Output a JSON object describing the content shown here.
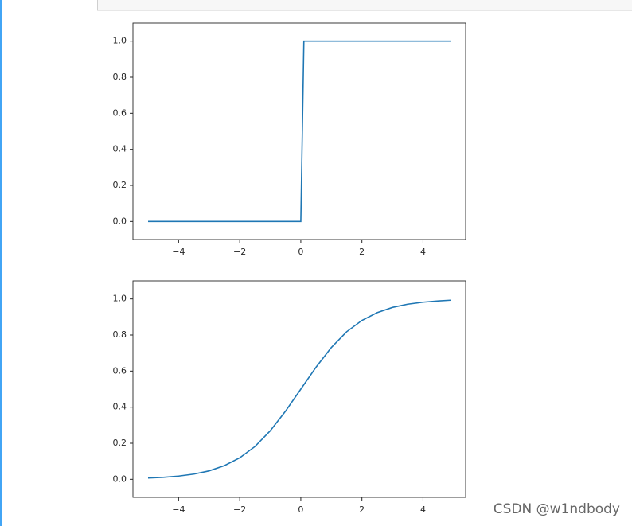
{
  "chart_data": [
    {
      "type": "line",
      "x": [
        -5,
        0,
        0.1,
        4.9
      ],
      "values": [
        0,
        0,
        1,
        1
      ],
      "color": "#1f77b4",
      "xlim": [
        -5.495,
        5.395
      ],
      "ylim": [
        -0.1,
        1.1
      ],
      "xticks": [
        {
          "value": -4,
          "label": "−4"
        },
        {
          "value": -2,
          "label": "−2"
        },
        0,
        2,
        4
      ],
      "yticks": [
        {
          "value": 0,
          "label": "0.0"
        },
        {
          "value": 0.2,
          "label": "0.2"
        },
        {
          "value": 0.4,
          "label": "0.4"
        },
        {
          "value": 0.6,
          "label": "0.6"
        },
        {
          "value": 0.8,
          "label": "0.8"
        },
        {
          "value": 1,
          "label": "1.0"
        }
      ],
      "grid": false
    },
    {
      "type": "line",
      "x": [
        -5,
        -4.5,
        -4,
        -3.5,
        -3,
        -2.5,
        -2,
        -1.5,
        -1,
        -0.5,
        0,
        0.5,
        1,
        1.5,
        2,
        2.5,
        3,
        3.5,
        4,
        4.5,
        4.9
      ],
      "values": [
        0.007,
        0.011,
        0.018,
        0.029,
        0.047,
        0.076,
        0.119,
        0.182,
        0.269,
        0.378,
        0.5,
        0.622,
        0.731,
        0.818,
        0.881,
        0.924,
        0.953,
        0.971,
        0.982,
        0.989,
        0.993
      ],
      "color": "#1f77b4",
      "xlim": [
        -5.495,
        5.395
      ],
      "ylim": [
        -0.1,
        1.1
      ],
      "xticks": [
        {
          "value": -4,
          "label": "−4"
        },
        {
          "value": -2,
          "label": "−2"
        },
        0,
        2,
        4
      ],
      "yticks": [
        {
          "value": 0,
          "label": "0.0"
        },
        {
          "value": 0.2,
          "label": "0.2"
        },
        {
          "value": 0.4,
          "label": "0.4"
        },
        {
          "value": 0.6,
          "label": "0.6"
        },
        {
          "value": 0.8,
          "label": "0.8"
        },
        {
          "value": 1,
          "label": "1.0"
        }
      ],
      "grid": false
    }
  ],
  "watermark": "CSDN @w1ndbody"
}
